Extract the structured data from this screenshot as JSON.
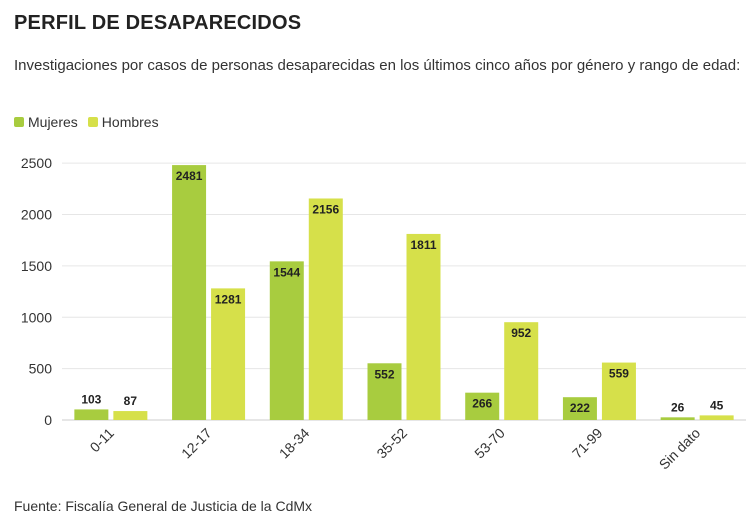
{
  "title": "PERFIL DE DESAPARECIDOS",
  "subtitle": "Investigaciones por casos de personas desaparecidas en los últimos cinco años por género y rango de edad:",
  "source": "Fuente: Fiscalía General de Justicia de la CdMx",
  "legend": [
    {
      "label": "Mujeres",
      "color": "#a8cc3f"
    },
    {
      "label": "Hombres",
      "color": "#d6e04a"
    }
  ],
  "chart_data": {
    "type": "bar",
    "categories": [
      "0-11",
      "12-17",
      "18-34",
      "35-52",
      "53-70",
      "71-99",
      "Sin dato"
    ],
    "series": [
      {
        "name": "Mujeres",
        "color": "#a8cc3f",
        "values": [
          103,
          2481,
          1544,
          552,
          266,
          222,
          26
        ]
      },
      {
        "name": "Hombres",
        "color": "#d6e04a",
        "values": [
          87,
          1281,
          2156,
          1811,
          952,
          559,
          45
        ]
      }
    ],
    "yticks": [
      0,
      500,
      1000,
      1500,
      2000,
      2500
    ],
    "ylim": [
      0,
      2550
    ],
    "grid": true,
    "legend_position": "top-left",
    "xlabel": "",
    "ylabel": ""
  }
}
